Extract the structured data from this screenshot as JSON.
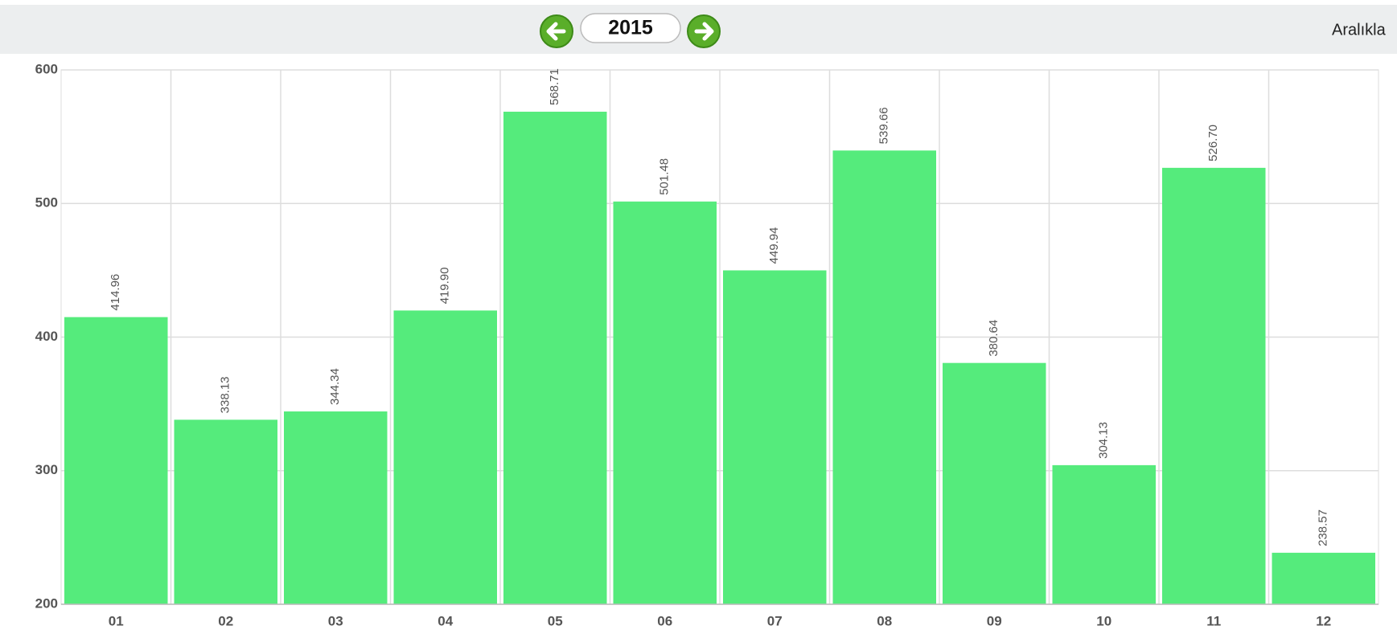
{
  "header": {
    "year": "2015",
    "right_label": "Aralıkla"
  },
  "chart_data": {
    "type": "bar",
    "categories": [
      "01",
      "02",
      "03",
      "04",
      "05",
      "06",
      "07",
      "08",
      "09",
      "10",
      "11",
      "12"
    ],
    "values": [
      414.96,
      338.13,
      344.34,
      419.9,
      568.71,
      501.48,
      449.94,
      539.66,
      380.64,
      304.13,
      526.7,
      238.57
    ],
    "value_labels": [
      "414.96",
      "338.13",
      "344.34",
      "419.90",
      "568.71",
      "501.48",
      "449.94",
      "539.66",
      "380.64",
      "304.13",
      "526.70",
      "238.57"
    ],
    "color": "#55eb7c",
    "ylim": [
      200,
      600
    ],
    "yticks": [
      200,
      300,
      400,
      500,
      600
    ],
    "grid": true
  }
}
